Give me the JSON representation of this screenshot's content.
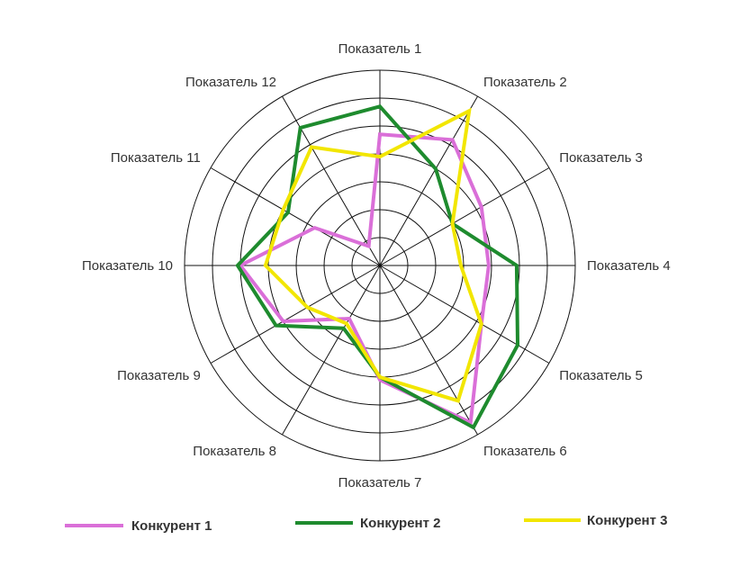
{
  "chart_data": {
    "type": "radar",
    "title": "",
    "axes": [
      "Показатель 1",
      "Показатель 2",
      "Показатель 3",
      "Показатель 4",
      "Показатель 5",
      "Показатель 6",
      "Показатель 7",
      "Показатель 8",
      "Показатель 9",
      "Показатель 10",
      "Показатель 11",
      "Показатель 12"
    ],
    "rmax": 7,
    "rings": 7,
    "grid": true,
    "legend_placement": "bottom",
    "series": [
      {
        "name": "Конкурент 1",
        "color": "#DA6FD8",
        "values": [
          4.7,
          5.2,
          4.2,
          3.9,
          4.2,
          6.5,
          4.1,
          2.2,
          4.0,
          5.0,
          2.7,
          0.8
        ]
      },
      {
        "name": "Конкурент 2",
        "color": "#1E8B2E",
        "values": [
          5.7,
          4.0,
          3.0,
          4.9,
          5.7,
          6.7,
          4.0,
          2.6,
          4.3,
          5.1,
          3.8,
          5.7
        ]
      },
      {
        "name": "Конкурент 3",
        "color": "#F2E600",
        "values": [
          3.9,
          6.4,
          3.0,
          2.9,
          4.2,
          5.6,
          4.0,
          2.4,
          3.0,
          4.1,
          4.0,
          4.9
        ]
      }
    ]
  }
}
